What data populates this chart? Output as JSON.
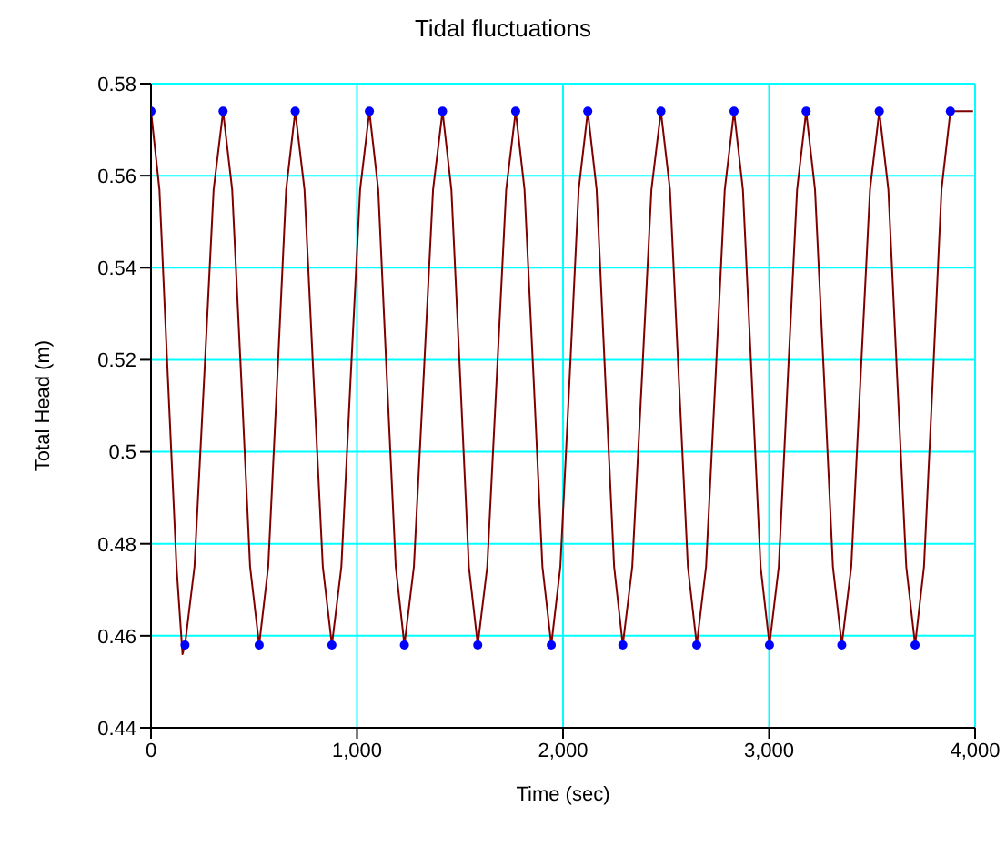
{
  "chart_data": {
    "type": "line",
    "title": "Tidal fluctuations",
    "xlabel": "Time (sec)",
    "ylabel": "Total Head (m)",
    "xlim": [
      0,
      4000
    ],
    "xticks": [
      0,
      {
        "value": 1000,
        "label": "1,000"
      },
      {
        "value": 2000,
        "label": "2,000"
      },
      {
        "value": 3000,
        "label": "3,000"
      },
      {
        "value": 4000,
        "label": "4,000"
      }
    ],
    "ylim": [
      0.44,
      0.58
    ],
    "yticks": [
      0.44,
      0.46,
      0.48,
      0.5,
      0.52,
      0.54,
      0.56,
      0.58
    ],
    "grid": true,
    "legend": false,
    "series": [
      {
        "color": "#800000",
        "marker": "none",
        "line_style": "solid",
        "x": [
          0,
          41,
          82,
          124,
          153,
          165,
          211,
          258,
          304,
          350,
          394,
          438,
          481,
          525,
          569,
          613,
          656,
          700,
          745,
          789,
          834,
          878,
          924,
          969,
          1015,
          1060,
          1103,
          1145,
          1188,
          1230,
          1276,
          1323,
          1369,
          1415,
          1458,
          1501,
          1543,
          1586,
          1632,
          1678,
          1724,
          1770,
          1813,
          1857,
          1900,
          1943,
          1987,
          2032,
          2076,
          2120,
          2163,
          2205,
          2248,
          2290,
          2336,
          2383,
          2429,
          2475,
          2519,
          2562,
          2606,
          2649,
          2694,
          2740,
          2785,
          2830,
          2873,
          2916,
          2959,
          3002,
          3047,
          3091,
          3136,
          3180,
          3223,
          3267,
          3310,
          3353,
          3399,
          3444,
          3490,
          3535,
          3579,
          3622,
          3666,
          3709,
          3752,
          3795,
          3837,
          3880,
          3990
        ],
        "values": [
          0.574,
          0.557,
          0.516,
          0.475,
          0.456,
          0.458,
          0.475,
          0.516,
          0.557,
          0.574,
          0.557,
          0.516,
          0.475,
          0.458,
          0.475,
          0.516,
          0.557,
          0.574,
          0.557,
          0.516,
          0.475,
          0.458,
          0.475,
          0.516,
          0.557,
          0.574,
          0.557,
          0.516,
          0.475,
          0.458,
          0.475,
          0.516,
          0.557,
          0.574,
          0.557,
          0.516,
          0.475,
          0.458,
          0.475,
          0.516,
          0.557,
          0.574,
          0.557,
          0.516,
          0.475,
          0.458,
          0.475,
          0.516,
          0.557,
          0.574,
          0.557,
          0.516,
          0.475,
          0.458,
          0.475,
          0.516,
          0.557,
          0.574,
          0.557,
          0.516,
          0.475,
          0.458,
          0.475,
          0.516,
          0.557,
          0.574,
          0.557,
          0.516,
          0.475,
          0.458,
          0.475,
          0.516,
          0.557,
          0.574,
          0.557,
          0.516,
          0.475,
          0.458,
          0.475,
          0.516,
          0.557,
          0.574,
          0.557,
          0.516,
          0.475,
          0.458,
          0.475,
          0.516,
          0.557,
          0.574,
          0.574
        ]
      },
      {
        "type": "scatter",
        "color": "#0000ff",
        "marker": "circle",
        "x": [
          0,
          165,
          350,
          525,
          700,
          878,
          1060,
          1230,
          1415,
          1586,
          1770,
          1943,
          2120,
          2290,
          2475,
          2649,
          2830,
          3002,
          3180,
          3353,
          3535,
          3709,
          3880
        ],
        "values": [
          0.574,
          0.458,
          0.574,
          0.458,
          0.574,
          0.458,
          0.574,
          0.458,
          0.574,
          0.458,
          0.574,
          0.458,
          0.574,
          0.458,
          0.574,
          0.458,
          0.574,
          0.458,
          0.574,
          0.458,
          0.574,
          0.458,
          0.574
        ]
      }
    ]
  }
}
